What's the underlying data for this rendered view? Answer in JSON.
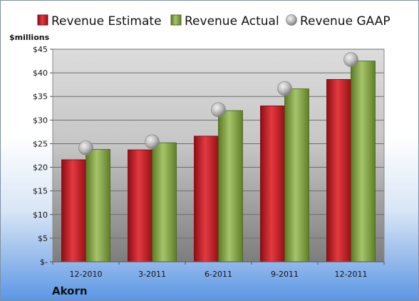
{
  "chart_data": {
    "type": "bar",
    "title": "",
    "ylabel": "$millions",
    "company": "Akorn",
    "categories": [
      "12-2010",
      "3-2011",
      "6-2011",
      "9-2011",
      "12-2011"
    ],
    "ylim": [
      0,
      45
    ],
    "yticks": [
      0,
      5,
      10,
      15,
      20,
      25,
      30,
      35,
      40,
      45
    ],
    "ytick_labels": [
      "$-",
      "$5",
      "$10",
      "$15",
      "$20",
      "$25",
      "$30",
      "$35",
      "$40",
      "$45"
    ],
    "grid": true,
    "legend_position": "top",
    "series": [
      {
        "name": "Revenue Estimate",
        "kind": "bar",
        "color": "#c0121d",
        "values": [
          21.6,
          23.7,
          26.6,
          33.0,
          38.6
        ]
      },
      {
        "name": "Revenue Actual",
        "kind": "bar",
        "color": "#7a9a3a",
        "values": [
          23.8,
          25.2,
          32.0,
          36.6,
          42.5
        ]
      },
      {
        "name": "Revenue GAAP",
        "kind": "marker",
        "color": "#b8b8b8",
        "values": [
          24.1,
          25.4,
          32.2,
          36.7,
          42.8
        ]
      }
    ]
  }
}
